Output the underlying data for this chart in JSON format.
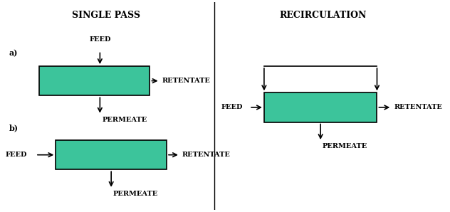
{
  "title_left": "SINGLE PASS",
  "title_right": "RECIRCULATION",
  "label_a": "a)",
  "label_b": "b)",
  "box_color": "#3CC49B",
  "box_edge_color": "#000000",
  "bg_color": "#ffffff",
  "font_size_title": 9,
  "font_size_label": 8,
  "font_size_flow": 7,
  "arrow_color": "#000000",
  "text_color": "#000000",
  "lw": 1.2
}
